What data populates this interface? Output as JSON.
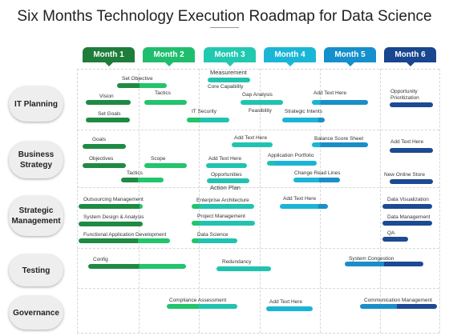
{
  "title": "Six Months Technology Execution Roadmap for Data Science",
  "colors": {
    "month1": "#1e7d3a",
    "month2": "#1fbe6e",
    "month3": "#22c8b0",
    "month4": "#1bb6d6",
    "month5": "#1590cc",
    "month6": "#18468f",
    "bar_dark_green": "#1e8a44",
    "bar_green": "#22c46c",
    "bar_teal": "#21c3b0",
    "bar_cyan": "#1bb4d6",
    "bar_blue": "#1a8ec8",
    "bar_navy": "#1c4a93"
  },
  "months": [
    "Month 1",
    "Month 2",
    "Month 3",
    "Month 4",
    "Month 5",
    "Month 6"
  ],
  "rows": [
    "IT Planning",
    "Business Strategy",
    "Strategic Management",
    "Testing",
    "Governance"
  ],
  "tasks": {
    "set_objective": "Set Objective",
    "measurement": "Measurement",
    "core_capability": "Core Capability",
    "vision": "Vision",
    "tactics_1": "Tactics",
    "gap_analysis": "Gap Analysis",
    "add_text_1": "Add Text Here",
    "opportunity_prioritization": "Opportunity Prioritization",
    "it_security": "IT Security",
    "feasibility": "Feasibility",
    "strategic_intents": "Strategic Intents",
    "set_goals": "Set Goals",
    "goals": "Goals",
    "add_text_2": "Add Text Here",
    "balance_score_sheet": "Balance Score Sheet",
    "add_text_3": "Add Text Here",
    "objectives": "Objectives",
    "scope": "Scope",
    "add_text_4": "Add Text Here",
    "application_portfolio": "Application Portfolio",
    "change_read_lines": "Change Read Lines",
    "new_online_store": "New Online Store",
    "tactics_2": "Tactics",
    "opportunities": "Opportunities",
    "action_plan": "Action Plan",
    "outsourcing_management": "Outsourcing Management",
    "enterprise_architecture": "Enterprise Architecture",
    "add_text_5": "Add Text Here",
    "data_visualization": "Data Visualization",
    "system_design": "System Design & Analysis",
    "project_management": "Project Management",
    "data_management": "Data Management",
    "functional_app_dev": "Functional Application Development",
    "data_science": "Data Science",
    "qa": "QA",
    "config": "Config",
    "redundancy": "Redundancy",
    "system_congestion": "System Congestion",
    "compliance_assessment": "Compliance Assessment",
    "add_text_6": "Add Text Here",
    "communication_management": "Communication Management"
  }
}
